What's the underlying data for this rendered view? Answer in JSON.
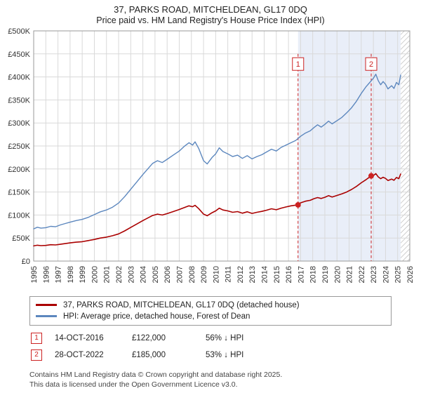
{
  "title": "37, PARKS ROAD, MITCHELDEAN, GL17 0DQ",
  "subtitle": "Price paid vs. HM Land Registry's House Price Index (HPI)",
  "chart_data": {
    "type": "line",
    "x_range": [
      1995,
      2026
    ],
    "y_range": [
      0,
      500000
    ],
    "y_tick_step": 50000,
    "y_tick_labels": [
      "£0",
      "£50K",
      "£100K",
      "£150K",
      "£200K",
      "£250K",
      "£300K",
      "£350K",
      "£400K",
      "£450K",
      "£500K"
    ],
    "x_ticks": [
      "1995",
      "1996",
      "1997",
      "1998",
      "1999",
      "2000",
      "2001",
      "2002",
      "2003",
      "2004",
      "2005",
      "2006",
      "2007",
      "2008",
      "2009",
      "2010",
      "2011",
      "2012",
      "2013",
      "2014",
      "2015",
      "2016",
      "2017",
      "2018",
      "2019",
      "2020",
      "2021",
      "2022",
      "2023",
      "2024",
      "2025",
      "2026"
    ],
    "grid_color": "#d9d9d9",
    "border_color": "#999999",
    "shaded_region": {
      "from": 2016.79,
      "to": 2025.25,
      "color": "#e9eef8"
    },
    "hatched_region": {
      "from": 2025.25,
      "to": 2026
    },
    "marker_color": "#cc2222",
    "marker_line_top": 450000,
    "marker_box_y": 428000,
    "markers": [
      {
        "label": "1",
        "x": 2016.79,
        "y": 122000
      },
      {
        "label": "2",
        "x": 2022.82,
        "y": 185000
      }
    ],
    "series": [
      {
        "name": "HPI: Average price, detached house, Forest of Dean",
        "color": "#5c87be",
        "width": 1.4,
        "points": [
          [
            1995,
            70000
          ],
          [
            1995.3,
            73500
          ],
          [
            1995.6,
            71500
          ],
          [
            1996,
            72500
          ],
          [
            1996.4,
            75500
          ],
          [
            1996.8,
            74500
          ],
          [
            1997.2,
            78500
          ],
          [
            1997.6,
            81500
          ],
          [
            1998,
            84500
          ],
          [
            1998.5,
            88000
          ],
          [
            1999,
            90500
          ],
          [
            1999.5,
            95000
          ],
          [
            2000,
            101000
          ],
          [
            2000.5,
            107000
          ],
          [
            2001,
            111000
          ],
          [
            2001.5,
            117000
          ],
          [
            2002,
            126000
          ],
          [
            2002.5,
            140000
          ],
          [
            2003,
            156000
          ],
          [
            2003.5,
            172000
          ],
          [
            2004,
            188000
          ],
          [
            2004.4,
            200000
          ],
          [
            2004.8,
            212000
          ],
          [
            2005.2,
            218000
          ],
          [
            2005.6,
            214000
          ],
          [
            2006,
            221000
          ],
          [
            2006.5,
            230000
          ],
          [
            2007,
            239000
          ],
          [
            2007.4,
            249000
          ],
          [
            2007.8,
            257000
          ],
          [
            2008.1,
            252000
          ],
          [
            2008.3,
            259000
          ],
          [
            2008.6,
            245000
          ],
          [
            2009,
            218000
          ],
          [
            2009.3,
            211000
          ],
          [
            2009.7,
            225000
          ],
          [
            2010,
            233000
          ],
          [
            2010.3,
            246000
          ],
          [
            2010.6,
            238000
          ],
          [
            2011,
            233000
          ],
          [
            2011.4,
            227000
          ],
          [
            2011.8,
            230000
          ],
          [
            2012.2,
            223000
          ],
          [
            2012.6,
            229000
          ],
          [
            2013,
            222000
          ],
          [
            2013.4,
            227000
          ],
          [
            2013.8,
            231000
          ],
          [
            2014.2,
            237000
          ],
          [
            2014.6,
            243000
          ],
          [
            2015,
            239000
          ],
          [
            2015.4,
            247000
          ],
          [
            2015.8,
            252000
          ],
          [
            2016.2,
            257000
          ],
          [
            2016.6,
            262000
          ],
          [
            2017,
            271000
          ],
          [
            2017.4,
            278000
          ],
          [
            2017.8,
            283000
          ],
          [
            2018.1,
            290000
          ],
          [
            2018.4,
            296000
          ],
          [
            2018.7,
            291000
          ],
          [
            2019,
            297000
          ],
          [
            2019.3,
            304000
          ],
          [
            2019.6,
            298000
          ],
          [
            2020,
            305000
          ],
          [
            2020.4,
            312000
          ],
          [
            2020.8,
            322000
          ],
          [
            2021.2,
            333000
          ],
          [
            2021.6,
            347000
          ],
          [
            2022,
            364000
          ],
          [
            2022.4,
            379000
          ],
          [
            2022.8,
            391000
          ],
          [
            2023,
            397000
          ],
          [
            2023.2,
            406000
          ],
          [
            2023.4,
            392000
          ],
          [
            2023.6,
            383000
          ],
          [
            2023.8,
            390000
          ],
          [
            2024,
            384000
          ],
          [
            2024.2,
            374000
          ],
          [
            2024.5,
            381000
          ],
          [
            2024.7,
            375000
          ],
          [
            2024.9,
            388000
          ],
          [
            2025.1,
            383000
          ],
          [
            2025.25,
            404000
          ]
        ]
      },
      {
        "name": "37, PARKS ROAD, MITCHELDEAN, GL17 0DQ (detached house)",
        "color": "#aa0000",
        "width": 1.6,
        "points": [
          [
            1995,
            33000
          ],
          [
            1995.3,
            34500
          ],
          [
            1995.6,
            33500
          ],
          [
            1996,
            34000
          ],
          [
            1996.4,
            35500
          ],
          [
            1996.8,
            35000
          ],
          [
            1997.2,
            36500
          ],
          [
            1997.6,
            38000
          ],
          [
            1998,
            39500
          ],
          [
            1998.5,
            41000
          ],
          [
            1999,
            42000
          ],
          [
            1999.5,
            44500
          ],
          [
            2000,
            47000
          ],
          [
            2000.5,
            50000
          ],
          [
            2001,
            52000
          ],
          [
            2001.5,
            55000
          ],
          [
            2002,
            59000
          ],
          [
            2002.5,
            65500
          ],
          [
            2003,
            73000
          ],
          [
            2003.5,
            80500
          ],
          [
            2004,
            88000
          ],
          [
            2004.4,
            93500
          ],
          [
            2004.8,
            99000
          ],
          [
            2005.2,
            102000
          ],
          [
            2005.6,
            100000
          ],
          [
            2006,
            103000
          ],
          [
            2006.5,
            107500
          ],
          [
            2007,
            112000
          ],
          [
            2007.4,
            116000
          ],
          [
            2007.8,
            120000
          ],
          [
            2008.1,
            118000
          ],
          [
            2008.3,
            121000
          ],
          [
            2008.6,
            114000
          ],
          [
            2009,
            102000
          ],
          [
            2009.3,
            98500
          ],
          [
            2009.7,
            105000
          ],
          [
            2010,
            109000
          ],
          [
            2010.3,
            115000
          ],
          [
            2010.6,
            111000
          ],
          [
            2011,
            109000
          ],
          [
            2011.4,
            106000
          ],
          [
            2011.8,
            107500
          ],
          [
            2012.2,
            104000
          ],
          [
            2012.6,
            107000
          ],
          [
            2013,
            103500
          ],
          [
            2013.4,
            106000
          ],
          [
            2013.8,
            108000
          ],
          [
            2014.2,
            110500
          ],
          [
            2014.6,
            113500
          ],
          [
            2015,
            111500
          ],
          [
            2015.4,
            115000
          ],
          [
            2015.8,
            117500
          ],
          [
            2016.2,
            120000
          ],
          [
            2016.6,
            121500
          ],
          [
            2016.79,
            122000
          ],
          [
            2017,
            126500
          ],
          [
            2017.4,
            130000
          ],
          [
            2017.8,
            132000
          ],
          [
            2018.1,
            135500
          ],
          [
            2018.4,
            138000
          ],
          [
            2018.7,
            136000
          ],
          [
            2019,
            138500
          ],
          [
            2019.3,
            142000
          ],
          [
            2019.6,
            139000
          ],
          [
            2020,
            142500
          ],
          [
            2020.4,
            146000
          ],
          [
            2020.8,
            150000
          ],
          [
            2021.2,
            155500
          ],
          [
            2021.6,
            162000
          ],
          [
            2022,
            170000
          ],
          [
            2022.4,
            177000
          ],
          [
            2022.82,
            185000
          ],
          [
            2023,
            185500
          ],
          [
            2023.2,
            190000
          ],
          [
            2023.4,
            183000
          ],
          [
            2023.6,
            179000
          ],
          [
            2023.8,
            182000
          ],
          [
            2024,
            179500
          ],
          [
            2024.2,
            175000
          ],
          [
            2024.5,
            178000
          ],
          [
            2024.7,
            175500
          ],
          [
            2024.9,
            181500
          ],
          [
            2025.1,
            179000
          ],
          [
            2025.25,
            189000
          ]
        ]
      }
    ]
  },
  "legend": {
    "items": [
      {
        "label": "37, PARKS ROAD, MITCHELDEAN, GL17 0DQ (detached house)",
        "color": "#aa0000"
      },
      {
        "label": "HPI: Average price, detached house, Forest of Dean",
        "color": "#5c87be"
      }
    ]
  },
  "annotations": [
    {
      "num": "1",
      "date": "14-OCT-2016",
      "price": "£122,000",
      "hpi": "56% ↓ HPI"
    },
    {
      "num": "2",
      "date": "28-OCT-2022",
      "price": "£185,000",
      "hpi": "53% ↓ HPI"
    }
  ],
  "footer": {
    "line1": "Contains HM Land Registry data © Crown copyright and database right 2025.",
    "line2": "This data is licensed under the Open Government Licence v3.0."
  }
}
